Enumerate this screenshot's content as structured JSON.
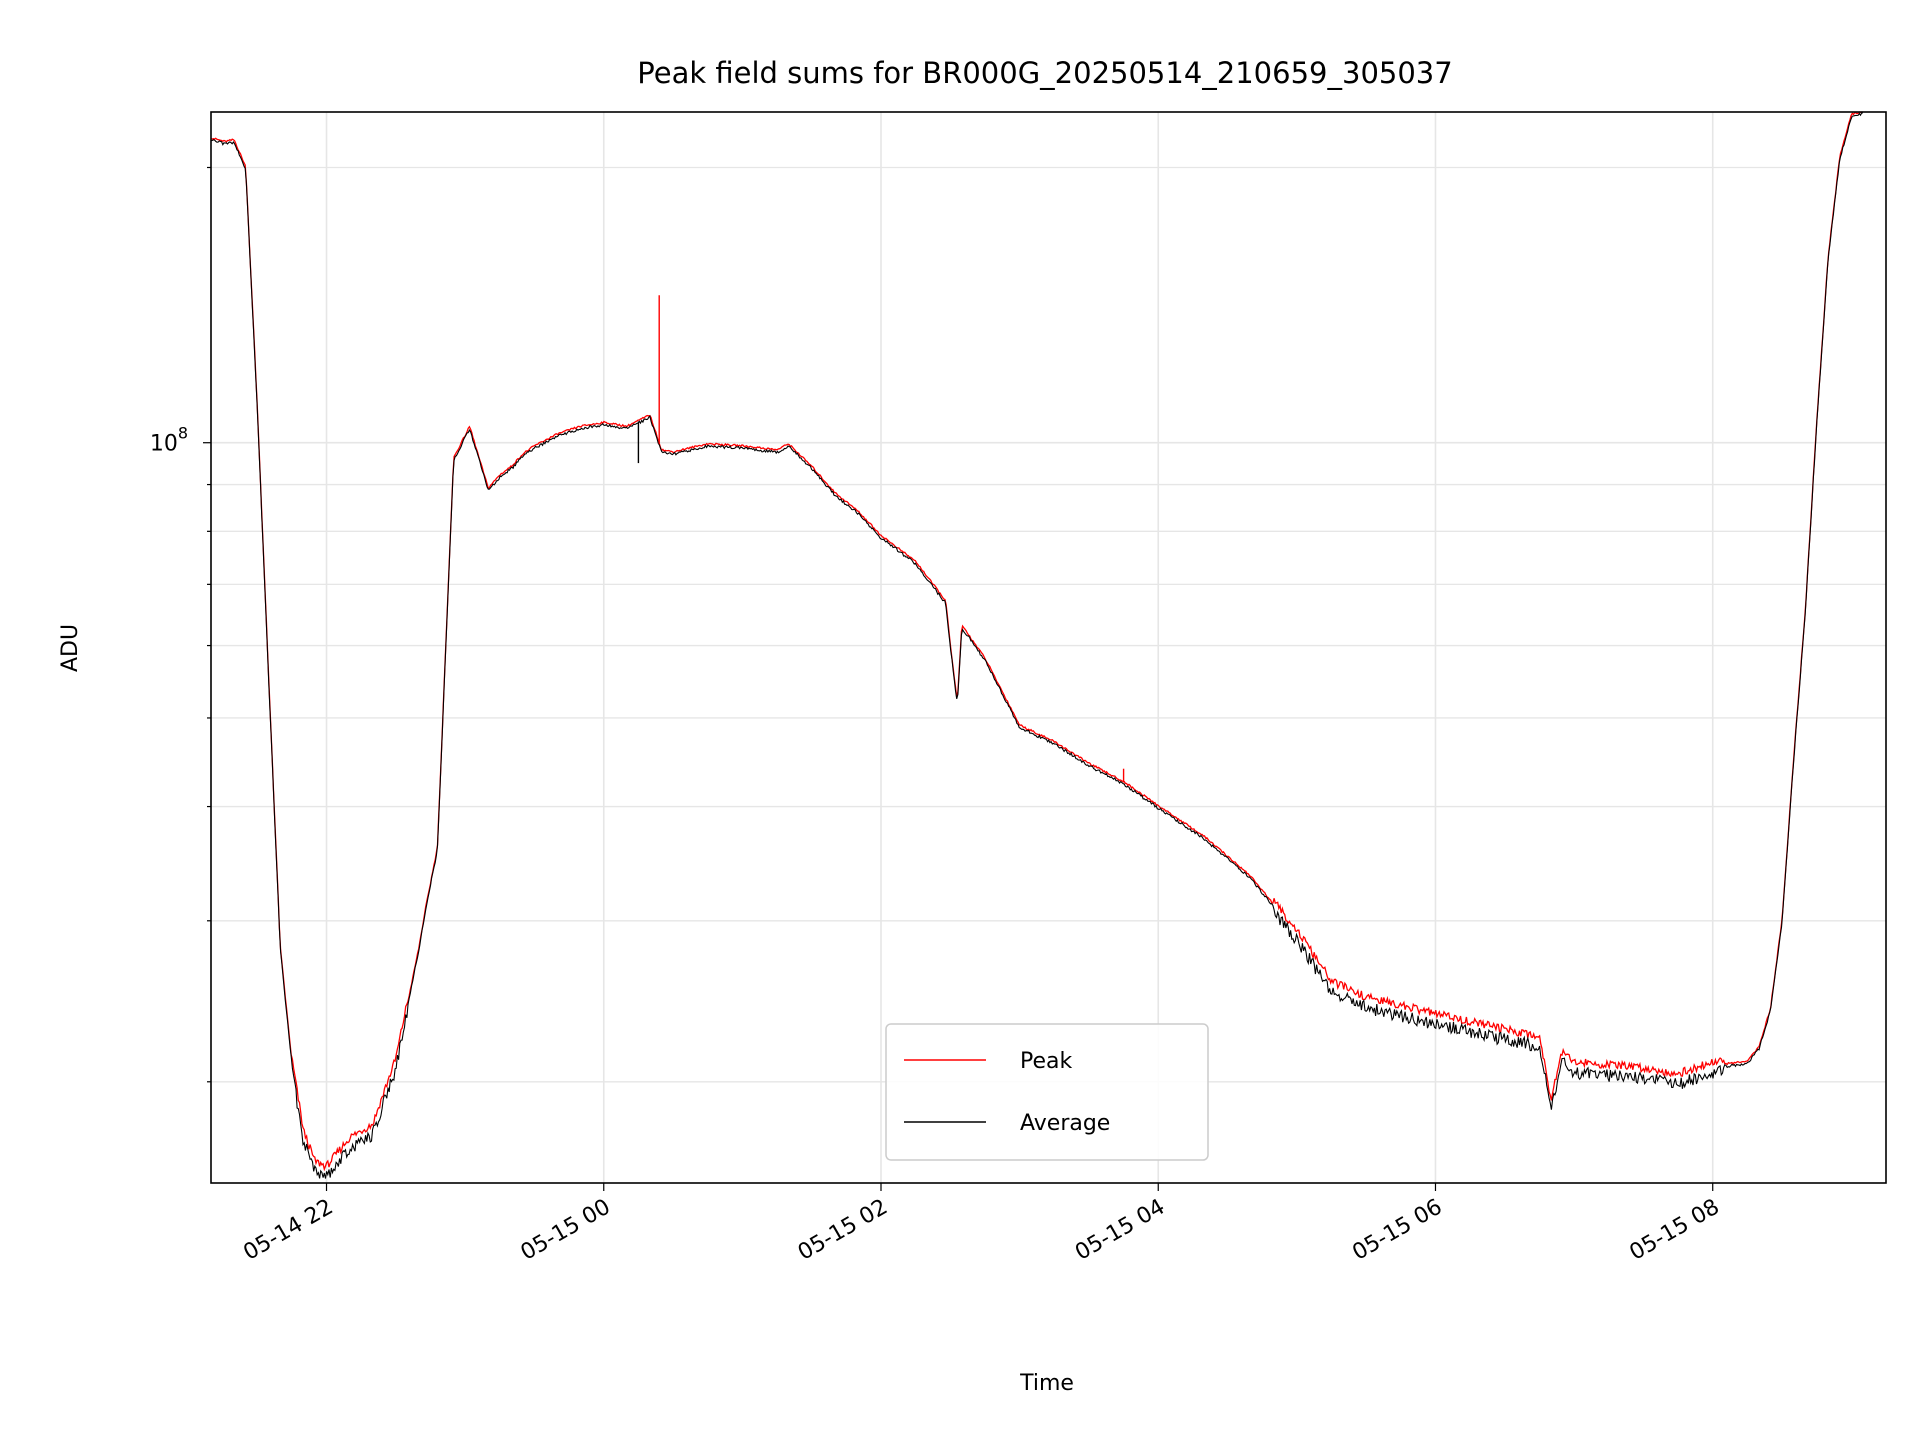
{
  "chart_data": {
    "type": "line",
    "title": "Peak field sums for BR000G_20250514_210659_305037",
    "xlabel": "Time",
    "ylabel": "ADU",
    "yscale": "log",
    "ylim": [
      15500000,
      230000000
    ],
    "xlim": [
      "2025-05-14 21:10",
      "2025-05-15 09:15"
    ],
    "x_ticks": [
      "05-14 22",
      "05-15 00",
      "05-15 02",
      "05-15 04",
      "05-15 06",
      "05-15 08"
    ],
    "y_tick_major": {
      "base": "10",
      "exp": "8"
    },
    "grid": true,
    "legend_position": "lower-center",
    "series": [
      {
        "name": "Peak",
        "color": "#ff0000"
      },
      {
        "name": "Average",
        "color": "#000000"
      }
    ],
    "x": [
      "2025-05-14 21:10",
      "2025-05-14 21:16",
      "2025-05-14 21:20",
      "2025-05-14 21:25",
      "2025-05-14 21:30",
      "2025-05-14 21:35",
      "2025-05-14 21:40",
      "2025-05-14 21:45",
      "2025-05-14 21:50",
      "2025-05-14 21:55",
      "2025-05-14 22:00",
      "2025-05-14 22:10",
      "2025-05-14 22:20",
      "2025-05-14 22:30",
      "2025-05-14 22:40",
      "2025-05-14 22:43",
      "2025-05-14 22:48",
      "2025-05-14 22:55",
      "2025-05-14 23:02",
      "2025-05-14 23:05",
      "2025-05-14 23:10",
      "2025-05-14 23:15",
      "2025-05-14 23:20",
      "2025-05-14 23:25",
      "2025-05-14 23:30",
      "2025-05-14 23:40",
      "2025-05-14 23:50",
      "2025-05-15 00:00",
      "2025-05-15 00:10",
      "2025-05-15 00:20",
      "2025-05-15 00:25",
      "2025-05-15 00:30",
      "2025-05-15 00:45",
      "2025-05-15 01:00",
      "2025-05-15 01:15",
      "2025-05-15 01:20",
      "2025-05-15 01:30",
      "2025-05-15 01:40",
      "2025-05-15 01:50",
      "2025-05-15 02:00",
      "2025-05-15 02:15",
      "2025-05-15 02:28",
      "2025-05-15 02:30",
      "2025-05-15 02:33",
      "2025-05-15 02:35",
      "2025-05-15 02:45",
      "2025-05-15 03:00",
      "2025-05-15 03:15",
      "2025-05-15 03:30",
      "2025-05-15 03:45",
      "2025-05-15 04:00",
      "2025-05-15 04:20",
      "2025-05-15 04:40",
      "2025-05-15 05:00",
      "2025-05-15 05:15",
      "2025-05-15 05:30",
      "2025-05-15 06:00",
      "2025-05-15 06:30",
      "2025-05-15 06:45",
      "2025-05-15 06:50",
      "2025-05-15 06:55",
      "2025-05-15 07:00",
      "2025-05-15 07:30",
      "2025-05-15 07:45",
      "2025-05-15 08:00",
      "2025-05-15 08:15",
      "2025-05-15 08:20",
      "2025-05-15 08:25",
      "2025-05-15 08:30",
      "2025-05-15 08:35",
      "2025-05-15 08:40",
      "2025-05-15 08:45",
      "2025-05-15 08:50",
      "2025-05-15 08:55",
      "2025-05-15 09:00",
      "2025-05-15 09:05"
    ],
    "values": [
      215000000,
      213000000,
      214000000,
      200000000,
      110000000,
      55000000,
      28000000,
      21000000,
      17500000,
      16200000,
      16000000,
      17200000,
      17800000,
      21000000,
      28000000,
      31000000,
      36000000,
      96000000,
      104000000,
      98000000,
      89000000,
      92000000,
      94000000,
      97000000,
      99000000,
      102000000,
      104000000,
      105000000,
      104000000,
      107000000,
      98000000,
      97500000,
      99500000,
      99000000,
      98000000,
      99500000,
      94000000,
      88000000,
      84000000,
      79000000,
      74000000,
      67000000,
      60000000,
      52000000,
      63000000,
      58000000,
      49000000,
      47000000,
      44500000,
      42500000,
      40000000,
      37000000,
      33500000,
      29000000,
      25500000,
      24500000,
      23500000,
      22600000,
      22200000,
      19000000,
      21500000,
      20800000,
      20500000,
      20200000,
      20800000,
      21000000,
      21800000,
      24000000,
      30000000,
      45000000,
      65000000,
      105000000,
      160000000,
      205000000,
      228000000,
      230000000
    ],
    "annotations": [
      {
        "x": "2025-05-15 00:24",
        "value": 145000000,
        "series": "Peak",
        "kind": "spike"
      },
      {
        "x": "2025-05-15 00:15",
        "value": 95000000,
        "series": "Average",
        "kind": "dip"
      },
      {
        "x": "2025-05-15 03:45",
        "value": 44000000,
        "series": "Peak",
        "kind": "spike"
      }
    ]
  }
}
